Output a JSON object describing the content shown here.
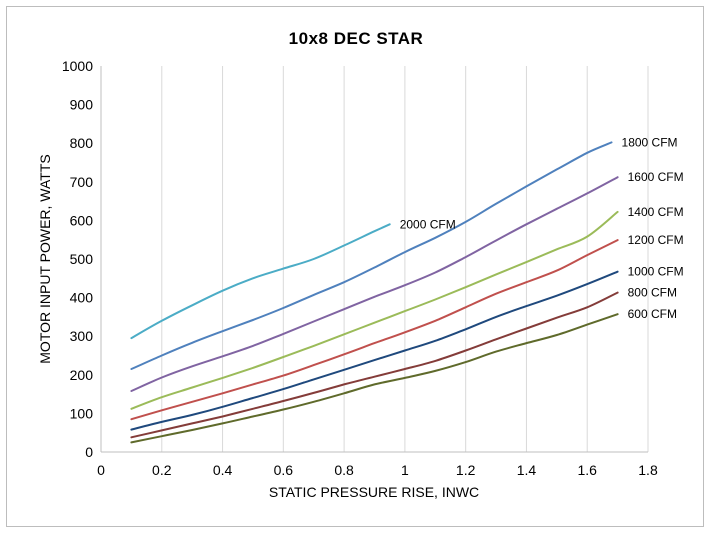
{
  "chart_data": {
    "type": "line",
    "title": "10x8 DEC STAR",
    "xlabel": "STATIC PRESSURE RISE, INWC",
    "ylabel": "MOTOR INPUT POWER, WATTS",
    "xlim": [
      0,
      1.8
    ],
    "ylim": [
      0,
      1000
    ],
    "x_ticks": [
      0,
      0.2,
      0.4,
      0.6,
      0.8,
      1,
      1.2,
      1.4,
      1.6,
      1.8
    ],
    "x_tick_labels": [
      "0",
      "0.2",
      "0.4",
      "0.6",
      "0.8",
      "1",
      "1.2",
      "1.4",
      "1.6",
      "1.8"
    ],
    "y_ticks": [
      0,
      100,
      200,
      300,
      400,
      500,
      600,
      700,
      800,
      900,
      1000
    ],
    "y_tick_labels": [
      "0",
      "100",
      "200",
      "300",
      "400",
      "500",
      "600",
      "700",
      "800",
      "900",
      "1000"
    ],
    "grid": "vertical",
    "legend": "inline labels at line ends",
    "series": [
      {
        "name": "2000 CFM",
        "color": "#4bacc6",
        "x": [
          0.1,
          0.2,
          0.3,
          0.4,
          0.5,
          0.6,
          0.7,
          0.8,
          0.9,
          0.95
        ],
        "y": [
          295,
          340,
          380,
          418,
          450,
          475,
          500,
          535,
          572,
          590
        ]
      },
      {
        "name": "1800 CFM",
        "color": "#4f81bd",
        "x": [
          0.1,
          0.2,
          0.3,
          0.4,
          0.5,
          0.6,
          0.7,
          0.8,
          0.9,
          1.0,
          1.1,
          1.2,
          1.3,
          1.4,
          1.5,
          1.6,
          1.68
        ],
        "y": [
          215,
          250,
          283,
          313,
          342,
          373,
          407,
          440,
          478,
          518,
          555,
          596,
          643,
          688,
          732,
          775,
          802
        ]
      },
      {
        "name": "1600 CFM",
        "color": "#8064a2",
        "x": [
          0.1,
          0.2,
          0.3,
          0.4,
          0.5,
          0.6,
          0.7,
          0.8,
          0.9,
          1.0,
          1.1,
          1.2,
          1.3,
          1.4,
          1.5,
          1.6,
          1.7
        ],
        "y": [
          158,
          193,
          222,
          248,
          275,
          306,
          338,
          370,
          402,
          432,
          465,
          505,
          548,
          590,
          630,
          670,
          712
        ]
      },
      {
        "name": "1400 CFM",
        "color": "#9bbb59",
        "x": [
          0.1,
          0.2,
          0.3,
          0.4,
          0.5,
          0.6,
          0.7,
          0.8,
          0.9,
          1.0,
          1.1,
          1.2,
          1.3,
          1.4,
          1.5,
          1.6,
          1.7
        ],
        "y": [
          112,
          142,
          167,
          192,
          218,
          246,
          275,
          305,
          335,
          365,
          395,
          427,
          460,
          492,
          525,
          558,
          622
        ]
      },
      {
        "name": "1200 CFM",
        "color": "#c0504d",
        "x": [
          0.1,
          0.2,
          0.3,
          0.4,
          0.5,
          0.6,
          0.7,
          0.8,
          0.9,
          1.0,
          1.1,
          1.2,
          1.3,
          1.4,
          1.5,
          1.6,
          1.7
        ],
        "y": [
          85,
          108,
          130,
          152,
          175,
          198,
          225,
          253,
          282,
          310,
          340,
          375,
          410,
          440,
          470,
          510,
          549
        ]
      },
      {
        "name": "1000 CFM",
        "color": "#1f497d",
        "x": [
          0.1,
          0.2,
          0.3,
          0.4,
          0.5,
          0.6,
          0.7,
          0.8,
          0.9,
          1.0,
          1.1,
          1.2,
          1.3,
          1.4,
          1.5,
          1.6,
          1.7
        ],
        "y": [
          58,
          78,
          96,
          117,
          140,
          163,
          188,
          213,
          238,
          263,
          288,
          318,
          350,
          378,
          405,
          435,
          467
        ]
      },
      {
        "name": "800 CFM",
        "color": "#843c39",
        "x": [
          0.1,
          0.2,
          0.3,
          0.4,
          0.5,
          0.6,
          0.7,
          0.8,
          0.9,
          1.0,
          1.1,
          1.2,
          1.3,
          1.4,
          1.5,
          1.6,
          1.7
        ],
        "y": [
          38,
          56,
          74,
          92,
          112,
          132,
          153,
          175,
          195,
          215,
          236,
          263,
          292,
          320,
          348,
          375,
          413
        ]
      },
      {
        "name": "600 CFM",
        "color": "#5f6a2b",
        "x": [
          0.1,
          0.2,
          0.3,
          0.4,
          0.5,
          0.6,
          0.7,
          0.8,
          0.9,
          1.0,
          1.1,
          1.2,
          1.3,
          1.4,
          1.5,
          1.6,
          1.7
        ],
        "y": [
          25,
          41,
          57,
          74,
          92,
          110,
          130,
          152,
          175,
          192,
          210,
          233,
          260,
          282,
          303,
          330,
          357
        ]
      }
    ]
  }
}
